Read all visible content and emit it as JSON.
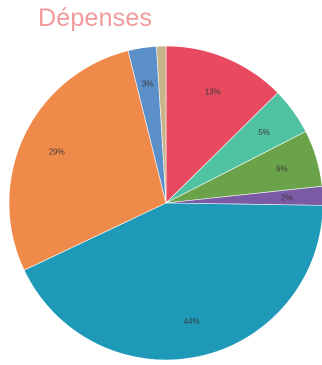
{
  "chart_data": {
    "type": "pie",
    "title": "Dépenses",
    "start_angle_deg": 0,
    "direction": "clockwise",
    "slices": [
      {
        "value": 13,
        "label": "13%",
        "color": "#e84a5f"
      },
      {
        "value": 5,
        "label": "5%",
        "color": "#4fc3a1"
      },
      {
        "value": 6,
        "label": "6%",
        "color": "#6ba34a"
      },
      {
        "value": 2,
        "label": "2%",
        "color": "#7b5aa6"
      },
      {
        "value": 44,
        "label": "44%",
        "color": "#1e9ab8"
      },
      {
        "value": 29,
        "label": "29%",
        "color": "#f08a4b"
      },
      {
        "value": 3,
        "label": "3%",
        "color": "#5b8fc9"
      },
      {
        "value": 1,
        "label": "",
        "color": "#c9b48a"
      }
    ]
  }
}
